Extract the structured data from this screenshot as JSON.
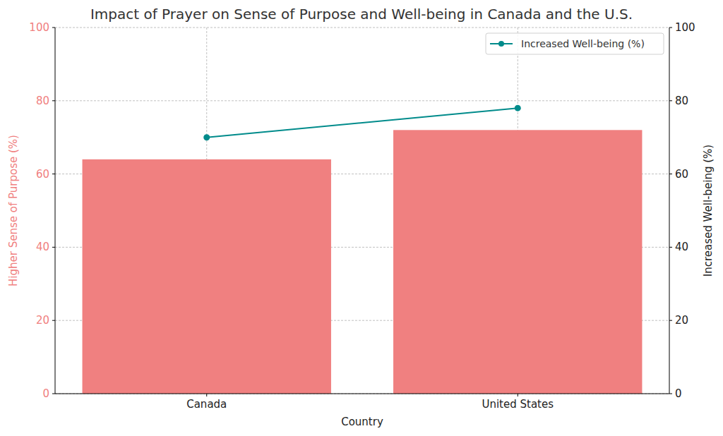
{
  "chart_data": {
    "type": "bar",
    "title": "Impact of Prayer on Sense of Purpose and Well-being in Canada and the U.S.",
    "x_label": "Country",
    "y_label": "Higher Sense of Purpose (%)",
    "y2_label": "Increased Well-being (%)",
    "categories": [
      "Canada",
      "United States"
    ],
    "series": [
      {
        "type": "bar",
        "color": "#f08080",
        "values": [
          64,
          72
        ]
      },
      {
        "name": "Increased Well-being (%)",
        "type": "line",
        "axis": "y2",
        "color": "#008b8b",
        "marker": "circle",
        "values": [
          70,
          78
        ]
      }
    ],
    "ylim": [
      0,
      100
    ],
    "yticks": [
      0,
      20,
      40,
      60,
      80,
      100
    ],
    "y2lim": [
      0,
      100
    ],
    "y2ticks": [
      0,
      20,
      40,
      60,
      80,
      100
    ],
    "grid": true,
    "legend": "upper right"
  }
}
